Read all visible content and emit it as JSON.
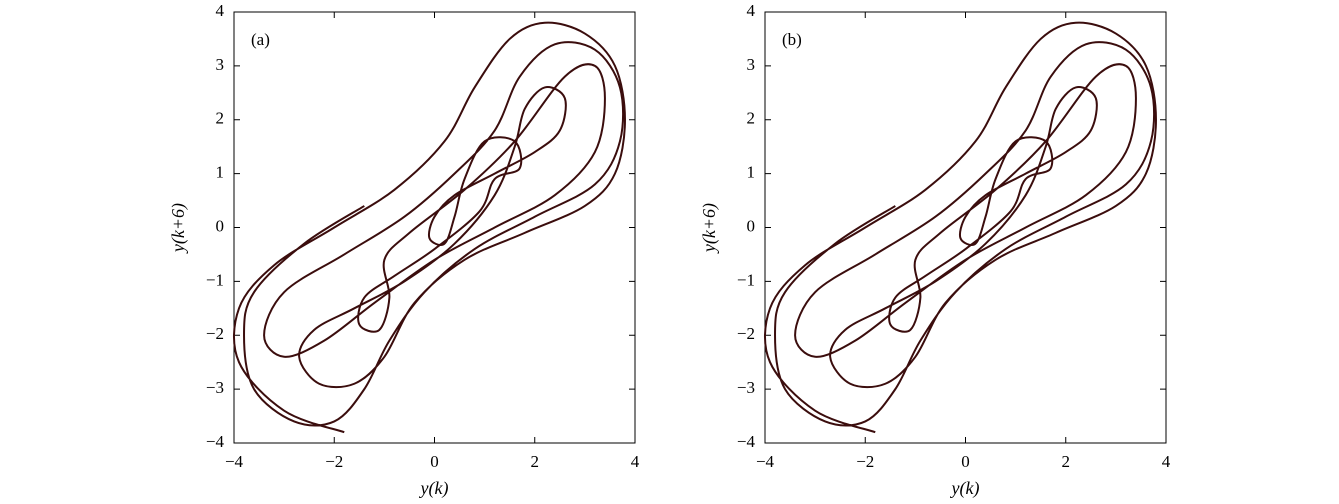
{
  "chart_data": [
    {
      "type": "line",
      "label": "(a)",
      "xlabel": "y(k)",
      "ylabel": "y(k+6)",
      "color": "#3b0d0d",
      "xlim": [
        -4,
        4
      ],
      "ylim": [
        -4,
        4
      ],
      "xticks": [
        {
          "value": -4,
          "label": "−4"
        },
        {
          "value": -2,
          "label": "−2"
        },
        0,
        2,
        4
      ],
      "yticks": [
        {
          "value": -4,
          "label": "−4"
        },
        {
          "value": -3,
          "label": "−3"
        },
        {
          "value": -2,
          "label": "−2"
        },
        {
          "value": -1,
          "label": "−1"
        },
        0,
        1,
        2,
        3,
        4
      ],
      "x": [
        -1.8,
        -3.0,
        -3.9,
        -3.9,
        -3.2,
        -2.0,
        -0.8,
        0.2,
        0.8,
        1.5,
        2.2,
        3.0,
        3.6,
        3.8,
        3.6,
        3.0,
        1.8,
        0.6,
        -0.4,
        -1.0,
        -1.6,
        -2.3,
        -2.7,
        -2.4,
        -1.6,
        -0.6,
        0.4,
        1.2,
        1.6,
        1.8,
        2.2,
        2.6,
        2.5,
        2.0,
        1.2,
        0.4,
        0.0,
        -0.1,
        0.2,
        0.4,
        0.6,
        1.0,
        1.6,
        1.7,
        1.2,
        0.9,
        0.0,
        -0.8,
        -1.4,
        -1.5,
        -1.1,
        -0.9,
        -1.0,
        -0.5,
        0.6,
        1.6,
        2.6,
        3.2,
        3.4,
        3.2,
        2.4,
        1.2,
        0.0,
        -1.2,
        -2.2,
        -3.0,
        -3.4,
        -3.0,
        -1.8,
        -0.6,
        0.4,
        1.2,
        1.7,
        2.4,
        3.2,
        3.7,
        3.7,
        3.2,
        2.0,
        0.8,
        -0.2,
        -0.9,
        -1.4,
        -2.0,
        -2.8,
        -3.6,
        -3.8,
        -3.6,
        -2.6,
        -1.4
      ],
      "values": [
        -3.8,
        -3.4,
        -2.5,
        -1.5,
        -0.7,
        0.0,
        0.7,
        1.6,
        2.6,
        3.5,
        3.8,
        3.6,
        3.0,
        2.0,
        1.0,
        0.4,
        -0.1,
        -0.6,
        -1.4,
        -2.4,
        -2.9,
        -2.9,
        -2.4,
        -1.9,
        -1.5,
        -1.0,
        -0.3,
        0.6,
        1.5,
        2.2,
        2.6,
        2.4,
        1.8,
        1.4,
        1.0,
        0.6,
        0.2,
        -0.2,
        -0.3,
        0.2,
        0.9,
        1.6,
        1.6,
        1.1,
        0.9,
        0.3,
        -0.4,
        -0.9,
        -1.3,
        -1.8,
        -1.9,
        -1.3,
        -0.6,
        -0.1,
        0.7,
        1.6,
        2.8,
        3.0,
        2.4,
        1.4,
        0.6,
        0.0,
        -0.6,
        -1.4,
        -2.1,
        -2.4,
        -2.0,
        -1.2,
        -0.5,
        0.2,
        1.0,
        1.8,
        2.8,
        3.4,
        3.3,
        2.6,
        1.6,
        0.8,
        0.2,
        -0.4,
        -1.2,
        -2.1,
        -3.0,
        -3.6,
        -3.6,
        -3.0,
        -2.0,
        -1.2,
        -0.3,
        0.4
      ]
    },
    {
      "type": "line",
      "label": "(b)",
      "xlabel": "y(k)",
      "ylabel": "y(k+6)",
      "color": "#3b0d0d",
      "xlim": [
        -4,
        4
      ],
      "ylim": [
        -4,
        4
      ],
      "xticks": [
        {
          "value": -4,
          "label": "−4"
        },
        {
          "value": -2,
          "label": "−2"
        },
        0,
        2,
        4
      ],
      "yticks": [
        {
          "value": -4,
          "label": "−4"
        },
        {
          "value": -3,
          "label": "−3"
        },
        {
          "value": -2,
          "label": "−2"
        },
        {
          "value": -1,
          "label": "−1"
        },
        0,
        1,
        2,
        3,
        4
      ],
      "x": [
        -1.8,
        -3.0,
        -3.9,
        -3.9,
        -3.2,
        -2.0,
        -0.8,
        0.2,
        0.8,
        1.5,
        2.2,
        3.0,
        3.6,
        3.8,
        3.6,
        3.0,
        1.8,
        0.6,
        -0.4,
        -1.0,
        -1.6,
        -2.3,
        -2.7,
        -2.4,
        -1.6,
        -0.6,
        0.4,
        1.2,
        1.6,
        1.8,
        2.2,
        2.6,
        2.5,
        2.0,
        1.2,
        0.4,
        0.0,
        -0.1,
        0.2,
        0.4,
        0.6,
        1.0,
        1.6,
        1.7,
        1.2,
        0.9,
        0.0,
        -0.8,
        -1.4,
        -1.5,
        -1.1,
        -0.9,
        -1.0,
        -0.5,
        0.6,
        1.6,
        2.6,
        3.2,
        3.4,
        3.2,
        2.4,
        1.2,
        0.0,
        -1.2,
        -2.2,
        -3.0,
        -3.4,
        -3.0,
        -1.8,
        -0.6,
        0.4,
        1.2,
        1.7,
        2.4,
        3.2,
        3.7,
        3.7,
        3.2,
        2.0,
        0.8,
        -0.2,
        -0.9,
        -1.4,
        -2.0,
        -2.8,
        -3.6,
        -3.8,
        -3.6,
        -2.6,
        -1.4
      ],
      "values": [
        -3.8,
        -3.4,
        -2.5,
        -1.5,
        -0.7,
        0.0,
        0.7,
        1.6,
        2.6,
        3.5,
        3.8,
        3.6,
        3.0,
        2.0,
        1.0,
        0.4,
        -0.1,
        -0.6,
        -1.4,
        -2.4,
        -2.9,
        -2.9,
        -2.4,
        -1.9,
        -1.5,
        -1.0,
        -0.3,
        0.6,
        1.5,
        2.2,
        2.6,
        2.4,
        1.8,
        1.4,
        1.0,
        0.6,
        0.2,
        -0.2,
        -0.3,
        0.2,
        0.9,
        1.6,
        1.6,
        1.1,
        0.9,
        0.3,
        -0.4,
        -0.9,
        -1.3,
        -1.8,
        -1.9,
        -1.3,
        -0.6,
        -0.1,
        0.7,
        1.6,
        2.8,
        3.0,
        2.4,
        1.4,
        0.6,
        0.0,
        -0.6,
        -1.4,
        -2.1,
        -2.4,
        -2.0,
        -1.2,
        -0.5,
        0.2,
        1.0,
        1.8,
        2.8,
        3.4,
        3.3,
        2.6,
        1.6,
        0.8,
        0.2,
        -0.4,
        -1.2,
        -2.1,
        -3.0,
        -3.6,
        -3.6,
        -3.0,
        -2.0,
        -1.2,
        -0.3,
        0.4
      ]
    }
  ]
}
